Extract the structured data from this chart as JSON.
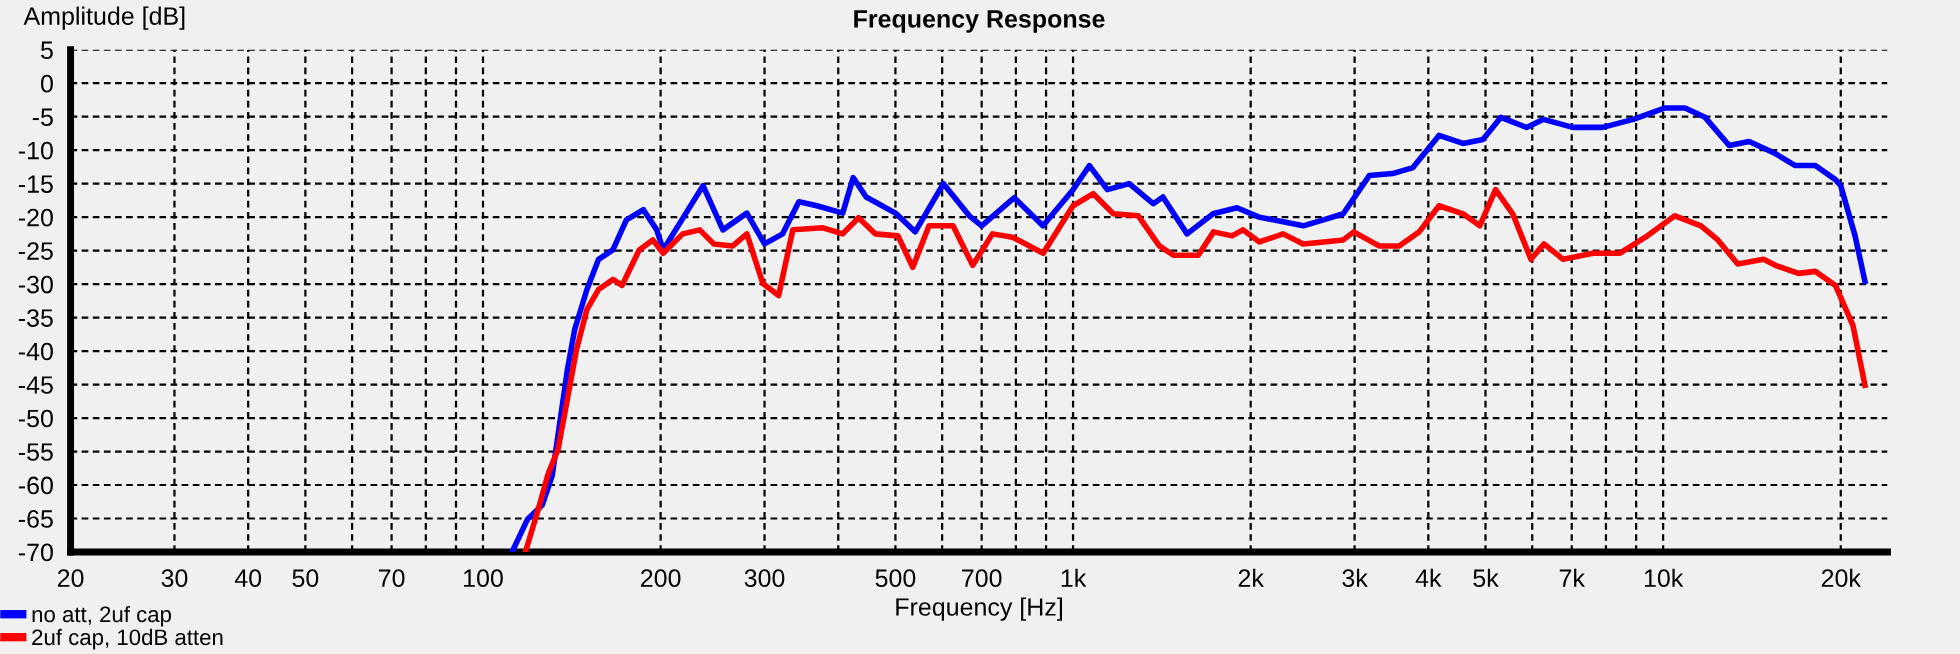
{
  "chart_data": {
    "type": "line",
    "title": "Frequency Response",
    "xlabel": "Frequency [Hz]",
    "ylabel": "Amplitude [dB]",
    "log": "x",
    "grid": true,
    "legend": "bottom left",
    "line_style": "solid",
    "marker": "none",
    "xlim": [
      20,
      24000
    ],
    "ylim": [
      -70,
      5
    ],
    "xticks": [
      20,
      30,
      40,
      50,
      {
        "value": 60,
        "label": null
      },
      70,
      {
        "value": 80,
        "label": null
      },
      {
        "value": 90,
        "label": null
      },
      100,
      200,
      300,
      {
        "value": 400,
        "label": null
      },
      500,
      {
        "value": 600,
        "label": null
      },
      700,
      {
        "value": 800,
        "label": null
      },
      {
        "value": 900,
        "label": null
      },
      {
        "value": 1000,
        "label": "1k"
      },
      {
        "value": 2000,
        "label": "2k"
      },
      {
        "value": 3000,
        "label": "3k"
      },
      {
        "value": 4000,
        "label": "4k"
      },
      {
        "value": 5000,
        "label": "5k"
      },
      {
        "value": 6000,
        "label": null
      },
      {
        "value": 7000,
        "label": "7k"
      },
      {
        "value": 8000,
        "label": null
      },
      {
        "value": 9000,
        "label": null
      },
      {
        "value": 10000,
        "label": "10k"
      },
      {
        "value": 20000,
        "label": "20k"
      }
    ],
    "yticks": [
      -70,
      -65,
      -60,
      -55,
      -50,
      -45,
      -40,
      -35,
      -30,
      -25,
      -20,
      -15,
      -10,
      -5,
      0,
      5
    ],
    "series": [
      {
        "name": "no att, 2uf cap",
        "color": "#0000ff",
        "x": [
          112,
          119,
          126,
          131,
          134,
          139,
          143,
          150,
          157,
          166,
          175,
          187,
          197,
          202,
          236,
          255,
          280,
          300,
          322,
          343,
          368,
          407,
          424,
          446,
          500,
          540,
          603,
          667,
          700,
          795,
          889,
          1000,
          1066,
          1143,
          1245,
          1367,
          1420,
          1560,
          1727,
          1896,
          2066,
          2270,
          2455,
          2656,
          2870,
          3177,
          3480,
          3767,
          4170,
          4580,
          4950,
          5310,
          5870,
          6270,
          7030,
          7900,
          8900,
          10080,
          10890,
          11780,
          12940,
          13990,
          15490,
          16750,
          18110,
          19590,
          20000,
          21150,
          21980
        ],
        "values": [
          -70,
          -65.1,
          -63,
          -58.6,
          -52.6,
          -42.8,
          -36.8,
          -30.8,
          -26.3,
          -24.9,
          -20.4,
          -18.9,
          -21.9,
          -24.9,
          -15.3,
          -21.9,
          -19.4,
          -24,
          -22.5,
          -17.7,
          -18.3,
          -19.4,
          -14.1,
          -17,
          -19.4,
          -22.2,
          -15,
          -19.8,
          -21.3,
          -17.1,
          -21.3,
          -15.9,
          -12.3,
          -15.9,
          -15,
          -18,
          -17,
          -22.5,
          -19.5,
          -18.6,
          -20,
          -20.7,
          -21.3,
          -20.4,
          -19.5,
          -13.8,
          -13.5,
          -12.6,
          -7.8,
          -9,
          -8.4,
          -5.1,
          -6.6,
          -5.4,
          -6.6,
          -6.6,
          -5.4,
          -3.7,
          -3.7,
          -5.1,
          -9.3,
          -8.7,
          -10.5,
          -12.3,
          -12.3,
          -14.4,
          -15.3,
          -22.8,
          -29.6
        ]
      },
      {
        "name": "2uf cap, 10dB atten",
        "color": "#ff0000",
        "x": [
          118,
          124,
          129,
          134,
          139,
          144,
          150,
          157,
          166,
          172,
          184,
          194,
          202,
          218,
          233,
          246,
          265,
          280,
          298,
          317,
          335,
          377,
          407,
          433,
          462,
          505,
          535,
          570,
          626,
          676,
          730,
          790,
          890,
          1000,
          1082,
          1170,
          1290,
          1400,
          1480,
          1630,
          1730,
          1860,
          1940,
          2070,
          2270,
          2455,
          2660,
          2870,
          2990,
          3300,
          3570,
          3860,
          4170,
          4580,
          4890,
          5200,
          5560,
          5970,
          6280,
          6770,
          7600,
          8440,
          9330,
          10470,
          11590,
          12380,
          13380,
          14800,
          15500,
          16960,
          18110,
          19590,
          20980,
          21980
        ],
        "values": [
          -70,
          -63.7,
          -58.3,
          -54.7,
          -47.2,
          -39.8,
          -33.8,
          -30.8,
          -29.3,
          -30.2,
          -24.9,
          -23.4,
          -25.4,
          -22.5,
          -21.9,
          -24,
          -24.3,
          -22.5,
          -29.9,
          -31.7,
          -21.9,
          -21.6,
          -22.5,
          -20.1,
          -22.5,
          -22.8,
          -27.5,
          -21.3,
          -21.3,
          -27.2,
          -22.5,
          -23,
          -25.4,
          -18.3,
          -16.5,
          -19.5,
          -19.8,
          -24.3,
          -25.7,
          -25.7,
          -22.2,
          -22.8,
          -21.9,
          -23.7,
          -22.5,
          -24,
          -23.7,
          -23.4,
          -22.2,
          -24.3,
          -24.3,
          -22.2,
          -18.3,
          -19.5,
          -21.3,
          -15.9,
          -19.5,
          -26.3,
          -24,
          -26.3,
          -25.4,
          -25.4,
          -23,
          -19.8,
          -21.3,
          -23.4,
          -27,
          -26.3,
          -27.2,
          -28.4,
          -28.1,
          -30.2,
          -36.2,
          -45.1
        ]
      }
    ]
  }
}
